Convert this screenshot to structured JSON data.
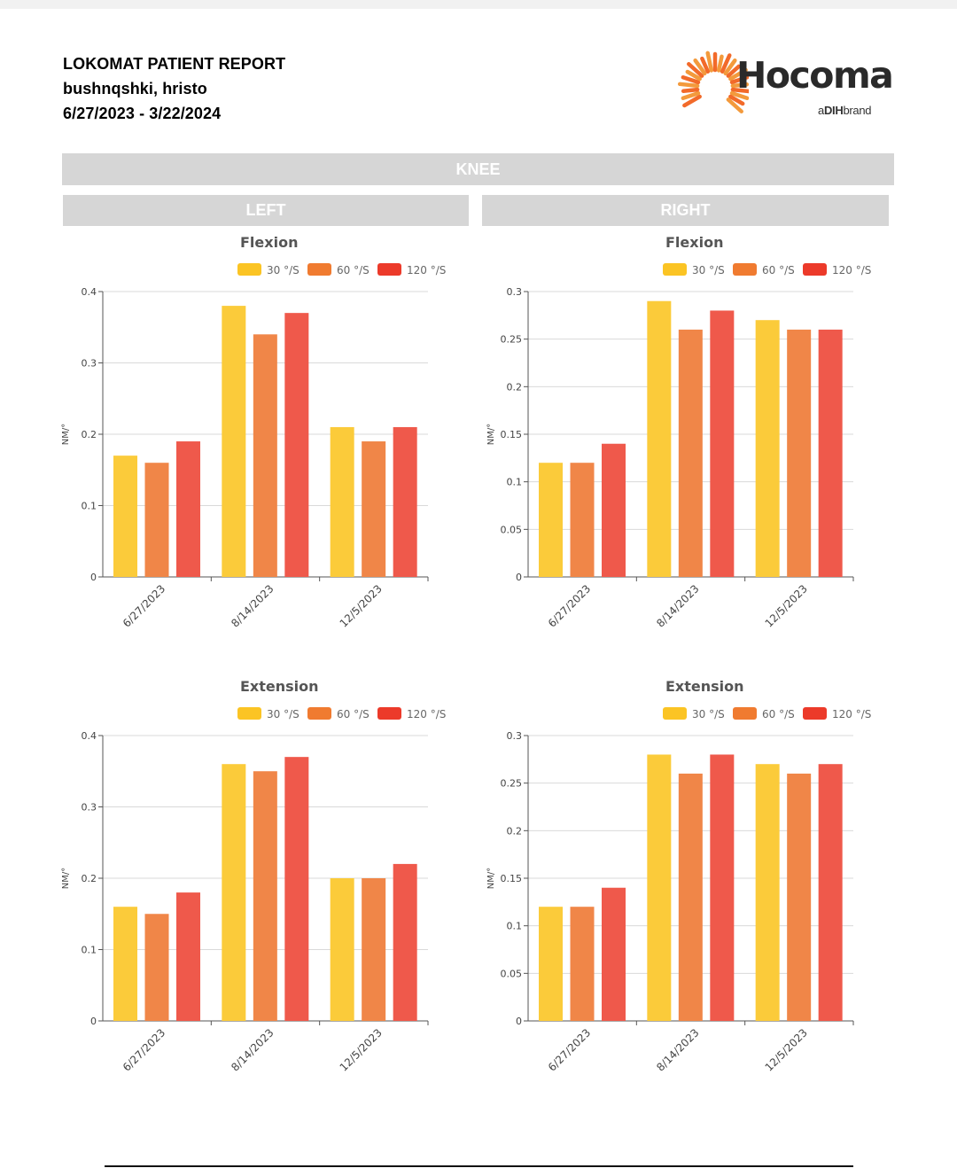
{
  "header": {
    "title": "LOKOMAT PATIENT REPORT",
    "patient": "bushnqshki, hristo",
    "date_range": "6/27/2023 - 3/22/2024"
  },
  "logo": {
    "name": "Hocoma",
    "tag_prefix": "a",
    "tag_bold": "DIH",
    "tag_suffix": "brand"
  },
  "section": {
    "title": "KNEE",
    "left_label": "LEFT",
    "right_label": "RIGHT"
  },
  "colors": {
    "s30": "#fbcb3a",
    "s60": "#f08648",
    "s120": "#ef594b",
    "legend30": "#fbc424",
    "legend60": "#f07b30",
    "legend120": "#ec3a2a"
  },
  "chart_data": [
    {
      "type": "bar",
      "side": "left",
      "title": "Flexion",
      "ylabel": "NM/°",
      "categories": [
        "6/27/2023",
        "8/14/2023",
        "12/5/2023"
      ],
      "ylim": [
        0,
        0.4
      ],
      "yticks": [
        "0",
        "0.1",
        "0.2",
        "0.3",
        "0.4"
      ],
      "grid": true,
      "legend": "top",
      "series": [
        {
          "name": "30 °/S",
          "values": [
            0.17,
            0.38,
            0.21
          ]
        },
        {
          "name": "60 °/S",
          "values": [
            0.16,
            0.34,
            0.19
          ]
        },
        {
          "name": "120 °/S",
          "values": [
            0.19,
            0.37,
            0.21
          ]
        }
      ]
    },
    {
      "type": "bar",
      "side": "right",
      "title": "Flexion",
      "ylabel": "NM/°",
      "categories": [
        "6/27/2023",
        "8/14/2023",
        "12/5/2023"
      ],
      "ylim": [
        0,
        0.3
      ],
      "yticks": [
        "0",
        "0.05",
        "0.1",
        "0.15",
        "0.2",
        "0.25",
        "0.3"
      ],
      "grid": true,
      "legend": "top",
      "series": [
        {
          "name": "30 °/S",
          "values": [
            0.12,
            0.29,
            0.27
          ]
        },
        {
          "name": "60 °/S",
          "values": [
            0.12,
            0.26,
            0.26
          ]
        },
        {
          "name": "120 °/S",
          "values": [
            0.14,
            0.28,
            0.26
          ]
        }
      ]
    },
    {
      "type": "bar",
      "side": "left",
      "title": "Extension",
      "ylabel": "NM/°",
      "categories": [
        "6/27/2023",
        "8/14/2023",
        "12/5/2023"
      ],
      "ylim": [
        0,
        0.4
      ],
      "yticks": [
        "0",
        "0.1",
        "0.2",
        "0.3",
        "0.4"
      ],
      "grid": true,
      "legend": "top",
      "series": [
        {
          "name": "30 °/S",
          "values": [
            0.16,
            0.36,
            0.2
          ]
        },
        {
          "name": "60 °/S",
          "values": [
            0.15,
            0.35,
            0.2
          ]
        },
        {
          "name": "120 °/S",
          "values": [
            0.18,
            0.37,
            0.22
          ]
        }
      ]
    },
    {
      "type": "bar",
      "side": "right",
      "title": "Extension",
      "ylabel": "NM/°",
      "categories": [
        "6/27/2023",
        "8/14/2023",
        "12/5/2023"
      ],
      "ylim": [
        0,
        0.3
      ],
      "yticks": [
        "0",
        "0.05",
        "0.1",
        "0.15",
        "0.2",
        "0.25",
        "0.3"
      ],
      "grid": true,
      "legend": "top",
      "series": [
        {
          "name": "30 °/S",
          "values": [
            0.12,
            0.28,
            0.27
          ]
        },
        {
          "name": "60 °/S",
          "values": [
            0.12,
            0.26,
            0.26
          ]
        },
        {
          "name": "120 °/S",
          "values": [
            0.14,
            0.28,
            0.27
          ]
        }
      ]
    }
  ]
}
